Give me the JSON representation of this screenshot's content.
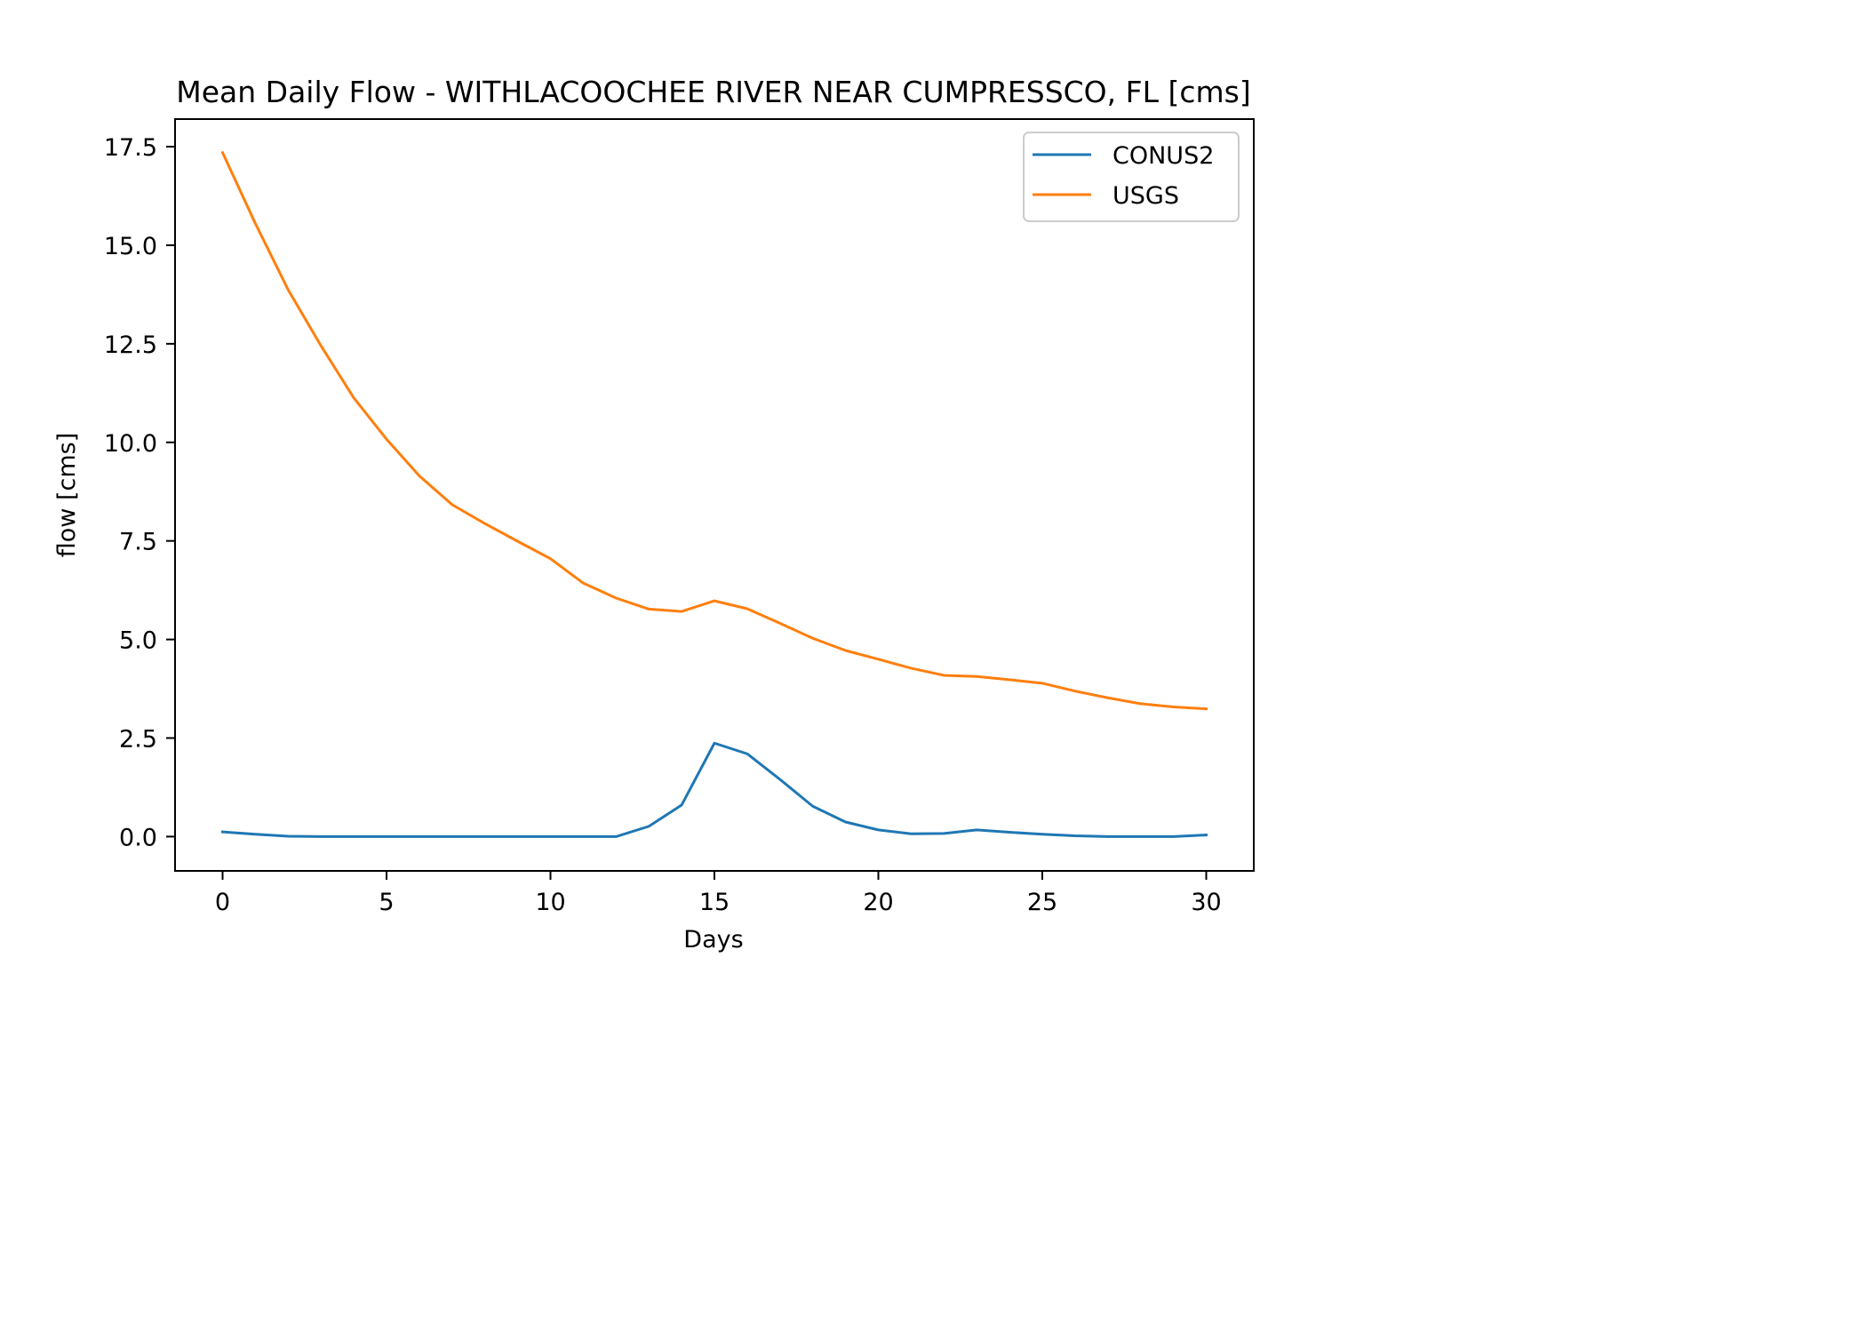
{
  "chart_data": {
    "type": "line",
    "title": "Mean Daily Flow - WITHLACOOCHEE RIVER NEAR CUMPRESSCO, FL [cms]",
    "xlabel": "Days",
    "ylabel": "flow [cms]",
    "xlim": [
      -1.45,
      31.45
    ],
    "ylim": [
      -0.87,
      18.2
    ],
    "xticks": [
      0,
      5,
      10,
      15,
      20,
      25,
      30
    ],
    "xtick_labels": [
      "0",
      "5",
      "10",
      "15",
      "20",
      "25",
      "30"
    ],
    "yticks": [
      0,
      2.5,
      5,
      7.5,
      10,
      12.5,
      15,
      17.5
    ],
    "ytick_labels": [
      "0.0",
      "2.5",
      "5.0",
      "7.5",
      "10.0",
      "12.5",
      "15.0",
      "17.5"
    ],
    "grid": false,
    "legend_position": "top-right",
    "x": [
      0,
      1,
      2,
      3,
      4,
      5,
      6,
      7,
      8,
      9,
      10,
      11,
      12,
      13,
      14,
      15,
      16,
      17,
      18,
      19,
      20,
      21,
      22,
      23,
      24,
      25,
      26,
      27,
      28,
      29,
      30
    ],
    "series": [
      {
        "name": "CONUS2",
        "color": "#1f77b4",
        "values": [
          0.12,
          0.06,
          0.01,
          0.0,
          0.0,
          0.0,
          0.0,
          0.0,
          0.0,
          0.0,
          0.0,
          0.0,
          0.0,
          0.26,
          0.8,
          2.37,
          2.1,
          1.45,
          0.77,
          0.37,
          0.17,
          0.07,
          0.08,
          0.17,
          0.11,
          0.06,
          0.02,
          0.0,
          0.0,
          0.0,
          0.04
        ]
      },
      {
        "name": "USGS",
        "color": "#ff7f0e",
        "values": [
          17.35,
          15.55,
          13.87,
          12.45,
          11.13,
          10.08,
          9.15,
          8.42,
          7.94,
          7.49,
          7.05,
          6.43,
          6.05,
          5.77,
          5.71,
          5.98,
          5.78,
          5.41,
          5.03,
          4.72,
          4.5,
          4.27,
          4.09,
          4.06,
          3.98,
          3.89,
          3.69,
          3.52,
          3.37,
          3.29,
          3.24
        ]
      }
    ]
  }
}
